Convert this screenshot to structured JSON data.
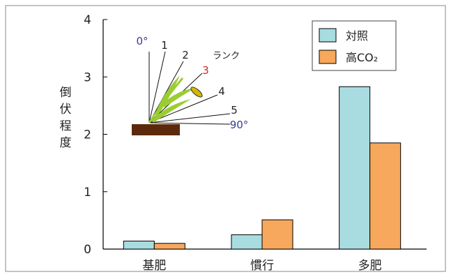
{
  "chart_data": {
    "type": "bar",
    "ylabel": "倒伏程度",
    "categories": [
      "基肥",
      "慣行",
      "多肥"
    ],
    "yticks": [
      "0",
      "1",
      "2",
      "3",
      "4"
    ],
    "ylim": [
      0,
      4
    ],
    "grid": false,
    "legend_position": "top-right",
    "series": [
      {
        "name": "対照",
        "values": [
          0.14,
          0.25,
          2.83
        ],
        "color": "#a8dce0"
      },
      {
        "name": "高CO₂",
        "values": [
          0.1,
          0.51,
          1.85
        ],
        "color": "#f7a85c"
      }
    ],
    "inset": {
      "angle_labels": [
        {
          "text": "0°",
          "color": "#3a3a9a"
        },
        {
          "text": "1",
          "color": "#222222"
        },
        {
          "text": "2",
          "color": "#222222"
        },
        {
          "text": "3",
          "color": "#e02020"
        },
        {
          "text": "4",
          "color": "#222222"
        },
        {
          "text": "5",
          "color": "#222222"
        },
        {
          "text": "90°",
          "color": "#3a3a9a"
        }
      ],
      "rank_label": "ランク",
      "ground_color": "#5a2a0a",
      "plant_color": "#9acd32"
    }
  }
}
